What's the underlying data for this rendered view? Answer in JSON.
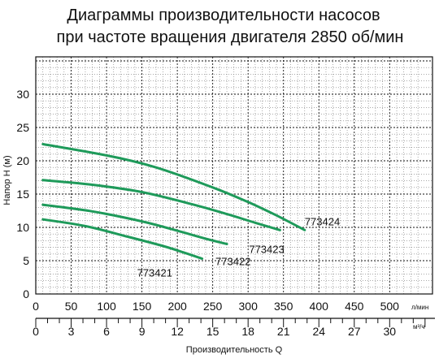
{
  "chart_data": {
    "type": "line",
    "title_lines": [
      "Диаграммы производительности насосов",
      "при частоте вращения двигателя 2850 об/мин"
    ],
    "ylabel": "Напор H (м)",
    "xlabel": "Производительность  Q",
    "x_unit_primary": "л/мин",
    "x_unit_secondary": "м³/ч",
    "xlim": [
      0,
      550
    ],
    "ylim": [
      0,
      35
    ],
    "x_ticks": [
      0,
      50,
      100,
      150,
      200,
      250,
      300,
      350,
      400,
      450,
      500
    ],
    "y_ticks": [
      0,
      5,
      10,
      15,
      20,
      25,
      30
    ],
    "x2_ticks": [
      0,
      3,
      6,
      9,
      12,
      15,
      18,
      21,
      24,
      27,
      30
    ],
    "grid": true,
    "line_color": "#1e9a5a",
    "series": [
      {
        "name": "773424",
        "x": [
          10,
          100,
          170,
          250,
          300,
          340,
          380
        ],
        "y": [
          22.5,
          20.8,
          19,
          16,
          13.8,
          11.8,
          9.6
        ]
      },
      {
        "name": "773423",
        "x": [
          10,
          80,
          150,
          220,
          270,
          310,
          345
        ],
        "y": [
          17.1,
          16.4,
          15.3,
          13.5,
          12,
          10.7,
          9.6
        ]
      },
      {
        "name": "773422",
        "x": [
          10,
          80,
          150,
          200,
          240,
          270
        ],
        "y": [
          13.4,
          12.4,
          10.9,
          9.5,
          8.3,
          7.5
        ]
      },
      {
        "name": "773421",
        "x": [
          10,
          70,
          130,
          180,
          210,
          235
        ],
        "y": [
          11.2,
          10.2,
          8.6,
          7.2,
          6.2,
          5.3
        ]
      }
    ]
  }
}
